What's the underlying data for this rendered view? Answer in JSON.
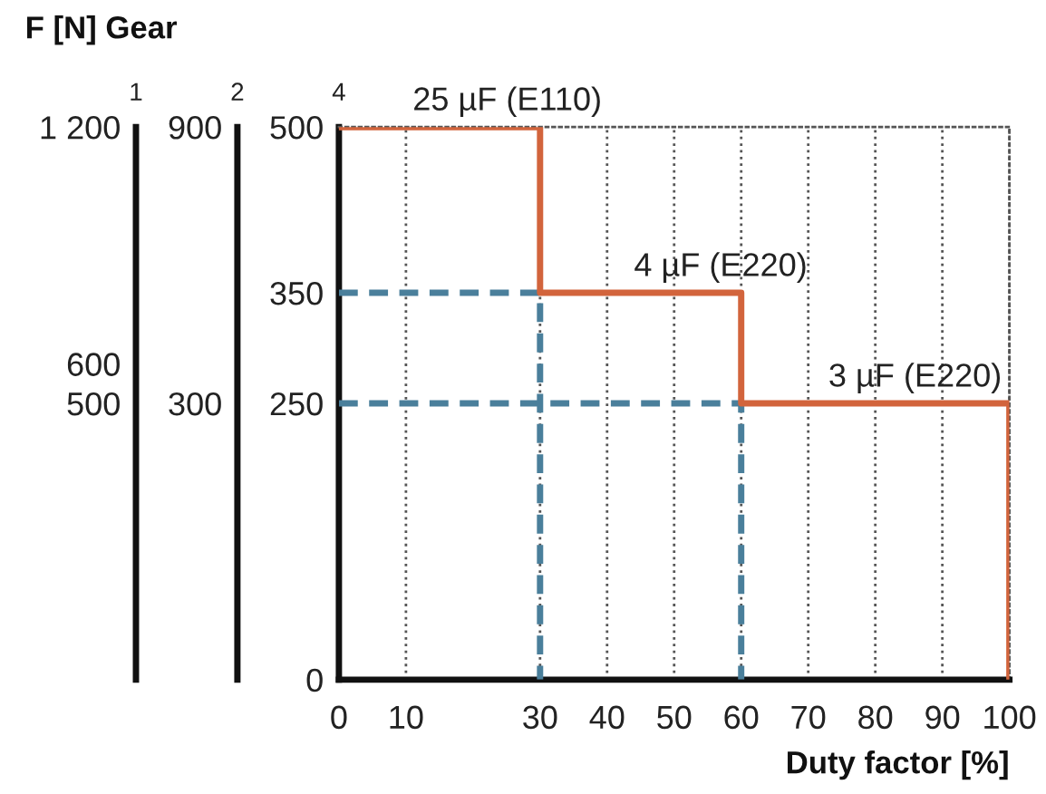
{
  "chart_data": {
    "type": "step",
    "title": "F [N] Gear",
    "xlabel": "Duty factor [%]",
    "ylabel": "4",
    "y2label": "2",
    "y3label": "1",
    "xlim": [
      0,
      100
    ],
    "xticks": [
      0,
      10,
      30,
      40,
      50,
      60,
      70,
      80,
      90,
      100
    ],
    "ylim": [
      0,
      500
    ],
    "yticks": [
      0,
      250,
      350,
      500
    ],
    "y2lim": [
      -300,
      900
    ],
    "y2ticks": [
      300,
      900
    ],
    "y3lim": [
      -200,
      1200
    ],
    "y3ticks": [
      500,
      600,
      {
        "value": 1200,
        "label": "1 200"
      }
    ],
    "grid": "x",
    "series": [
      {
        "type": "line",
        "color": "#4a7f9b",
        "line_style": "dashed",
        "x": [
          0,
          30,
          30
        ],
        "values": [
          350,
          350,
          0
        ]
      },
      {
        "type": "line",
        "color": "#4a7f9b",
        "line_style": "dashed",
        "x": [
          0,
          60,
          60
        ],
        "values": [
          250,
          250,
          0
        ]
      },
      {
        "color": "#d2643c",
        "line_style": "solid",
        "x": [
          0,
          30,
          60,
          100
        ],
        "values": [
          500,
          350,
          250,
          0
        ]
      }
    ],
    "annotations": [
      {
        "text": "25 µF (E110)",
        "x": 11,
        "y": 500
      },
      {
        "text": "4 µF (E220)",
        "x": 44,
        "y": 350
      },
      {
        "text": "3 µF (E220)",
        "x": 73,
        "y": 250
      }
    ]
  }
}
